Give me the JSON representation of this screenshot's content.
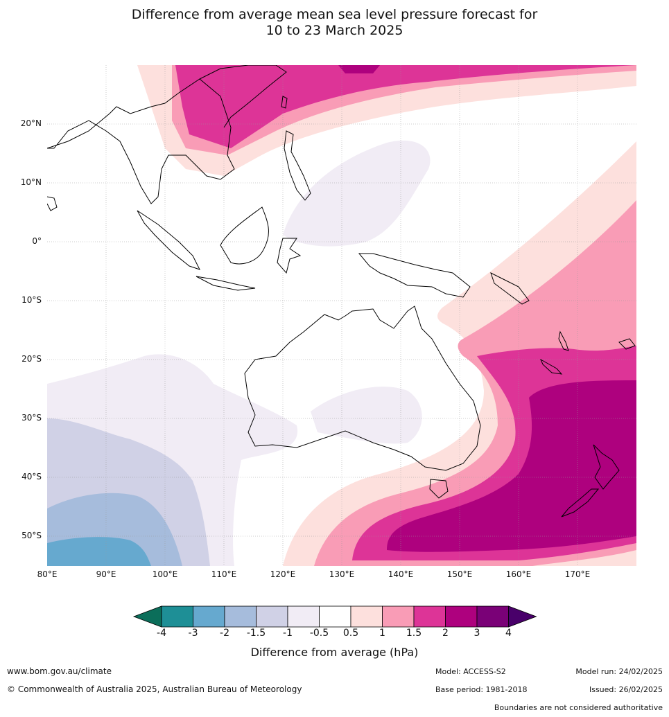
{
  "title": {
    "line1": "Difference from average mean sea level pressure forecast for",
    "line2": "10 to 23 March 2025"
  },
  "map": {
    "lat_labels": [
      "20°N",
      "10°N",
      "0°",
      "10°S",
      "20°S",
      "30°S",
      "40°S",
      "50°S"
    ],
    "lon_labels": [
      "80°E",
      "90°E",
      "100°E",
      "110°E",
      "120°E",
      "130°E",
      "140°E",
      "150°E",
      "160°E",
      "170°E"
    ]
  },
  "legend": {
    "ticks": [
      "-4",
      "-3",
      "-2",
      "-1.5",
      "-1",
      "-0.5",
      "0.5",
      "1",
      "1.5",
      "2",
      "3",
      "4"
    ],
    "label": "Difference from average (hPa)",
    "colors": [
      "#0b6e5a",
      "#1e8f96",
      "#66a9cf",
      "#a6bcdc",
      "#d0d1e6",
      "#f1ecf5",
      "#ffffff",
      "#fde0dd",
      "#f99cb6",
      "#dd3497",
      "#ae017e",
      "#7a0177",
      "#49006a"
    ]
  },
  "footer": {
    "website": "www.bom.gov.au/climate",
    "copyright": "© Commonwealth of Australia 2025, Australian Bureau of Meteorology",
    "model": "Model: ACCESS-S2",
    "base_period": "Base period: 1981-2018",
    "model_run": "Model run: 24/02/2025",
    "issued": "Issued: 26/02/2025",
    "boundaries": "Boundaries are not considered authoritative"
  }
}
